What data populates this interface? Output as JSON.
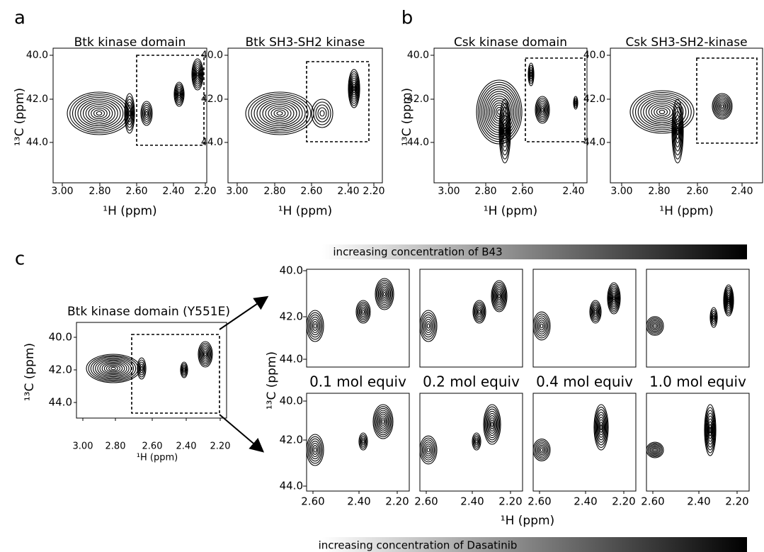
{
  "panels": [
    {
      "label": "a",
      "ylabel": "¹³C (ppm)",
      "yticks": [
        "40.0",
        "42.0",
        "44.0"
      ],
      "plots": [
        {
          "title": "Btk kinase domain",
          "xticks": [
            "3.00",
            "2.80",
            "2.60",
            "2.40",
            "2.20"
          ],
          "xlabel": "¹H (ppm)"
        },
        {
          "title": "Btk SH3-SH2 kinase",
          "xticks": [
            "3.00",
            "2.80",
            "2.60",
            "2.40",
            "2.20"
          ],
          "xlabel": "¹H (ppm)"
        }
      ]
    },
    {
      "label": "b",
      "ylabel": "¹³C (ppm)",
      "yticks": [
        "40.0",
        "42.0",
        "44.0"
      ],
      "plots": [
        {
          "title": "Csk kinase domain",
          "xticks": [
            "3.00",
            "2.80",
            "2.60",
            "2.40"
          ],
          "xlabel": "¹H (ppm)"
        },
        {
          "title": "Csk SH3-SH2-kinase",
          "xticks": [
            "3.00",
            "2.80",
            "2.60",
            "2.40"
          ],
          "xlabel": "¹H (ppm)"
        }
      ]
    },
    {
      "label": "c",
      "overview": {
        "title": "Btk kinase domain (Y551E)",
        "ylabel": "¹³C (ppm)",
        "xlabel": "¹H (ppm)",
        "yticks": [
          "40.0",
          "42.0",
          "44.0"
        ],
        "xticks": [
          "3.00",
          "2.80",
          "2.60",
          "2.40",
          "2.20"
        ]
      },
      "top_bar": "increasing concentration of B43",
      "bottom_bar": "increasing concentration of Dasatinib",
      "ylabel": "¹³C (ppm)",
      "xlabel": "¹H (ppm)",
      "row_yticks": [
        "40.0",
        "42.0",
        "44.0"
      ],
      "xticks": [
        "2.60",
        "2.40",
        "2.20"
      ],
      "columns": [
        "0.1 mol equiv",
        "0.2 mol equiv",
        "0.4 mol equiv",
        "1.0 mol equiv"
      ]
    }
  ]
}
